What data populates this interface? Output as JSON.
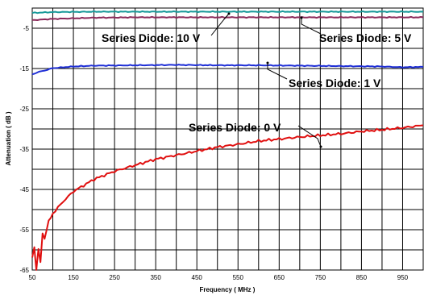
{
  "chart_data": {
    "type": "line",
    "title": "",
    "xlabel": "Frequency ( MHz )",
    "ylabel": "Attenuation ( dB )",
    "xlim": [
      50,
      1000
    ],
    "ylim": [
      -65,
      0
    ],
    "x_ticks": [
      50,
      150,
      250,
      350,
      450,
      550,
      650,
      750,
      850,
      950
    ],
    "y_ticks": [
      -5,
      -15,
      -25,
      -35,
      -45,
      -55,
      -65
    ],
    "x_grid_step": 50,
    "y_grid_step": 5,
    "grid": true,
    "legend": "none",
    "series": [
      {
        "label": "Series Diode: 10 V",
        "color": "#1a9a9a",
        "x": [
          50,
          100,
          200,
          300,
          400,
          500,
          600,
          700,
          800,
          900,
          1000
        ],
        "y": [
          -1.2,
          -1.0,
          -0.9,
          -0.9,
          -0.9,
          -0.9,
          -0.9,
          -0.9,
          -0.9,
          -0.9,
          -0.9
        ]
      },
      {
        "label": "Series Diode: 5 V",
        "color": "#8b2a5a",
        "x": [
          50,
          100,
          200,
          300,
          400,
          500,
          600,
          700,
          800,
          900,
          1000
        ],
        "y": [
          -3.0,
          -2.7,
          -2.4,
          -2.3,
          -2.3,
          -2.3,
          -2.3,
          -2.3,
          -2.3,
          -2.3,
          -2.3
        ]
      },
      {
        "label": "Series Diode: 1 V",
        "color": "#1f2fd6",
        "x": [
          50,
          60,
          80,
          100,
          150,
          200,
          300,
          400,
          500,
          600,
          700,
          800,
          900,
          950,
          1000
        ],
        "y": [
          -16.5,
          -16.0,
          -15.5,
          -14.9,
          -14.5,
          -14.3,
          -14.2,
          -14.1,
          -14.2,
          -14.2,
          -14.3,
          -14.4,
          -14.5,
          -14.7,
          -14.6
        ]
      },
      {
        "label": "Series Diode: 0 V",
        "color": "#e01010",
        "x": [
          50,
          55,
          60,
          65,
          70,
          75,
          80,
          90,
          100,
          125,
          150,
          200,
          250,
          300,
          350,
          400,
          450,
          500,
          550,
          600,
          650,
          700,
          750,
          800,
          850,
          900,
          950,
          1000
        ],
        "y": [
          -62,
          -59,
          -65,
          -60,
          -63,
          -56,
          -57,
          -53,
          -51,
          -48,
          -45.5,
          -42.5,
          -40.5,
          -39,
          -37.5,
          -36.5,
          -35.5,
          -34.5,
          -33.8,
          -33,
          -32.5,
          -32,
          -31.6,
          -31.2,
          -30.6,
          -30.2,
          -29.7,
          -29.1
        ]
      }
    ],
    "annotations": [
      {
        "text": "Series Diode: 10 V",
        "series": "Series Diode: 10 V"
      },
      {
        "text": "Series Diode: 5 V",
        "series": "Series Diode: 5 V"
      },
      {
        "text": "Series Diode: 1 V",
        "series": "Series Diode: 1 V"
      },
      {
        "text": "Series Diode: 0 V",
        "series": "Series Diode: 0 V"
      }
    ]
  }
}
